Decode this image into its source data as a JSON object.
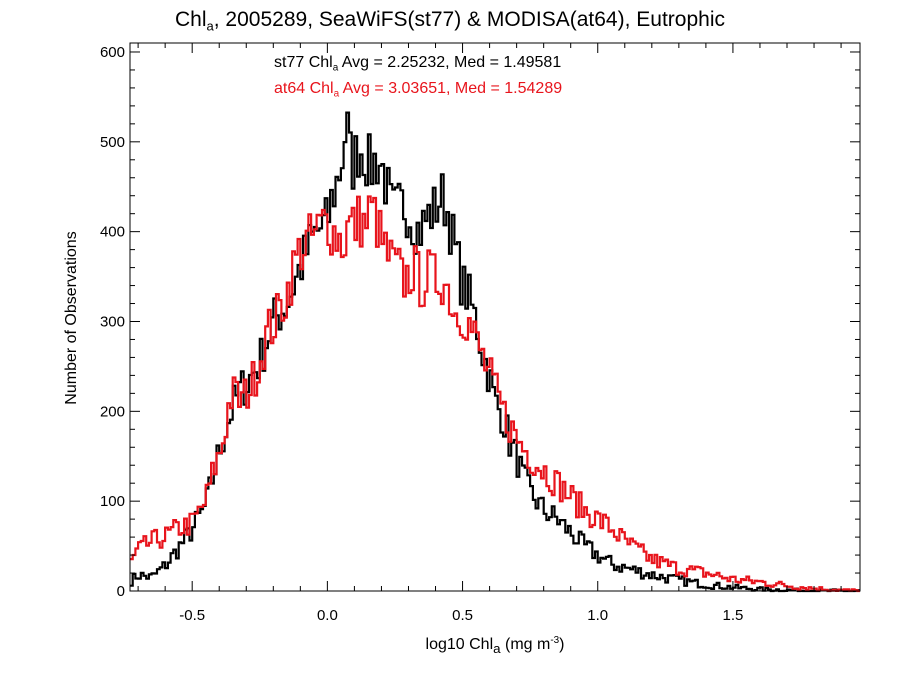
{
  "chart_data": {
    "type": "histogram",
    "title_prefix": "Chl",
    "title_sub": "a",
    "title_suffix": ", 2005289, SeaWiFS(st77) & MODISA(at64), Eutrophic",
    "xlabel_prefix": "log10 Chl",
    "xlabel_sub": "a",
    "xlabel_unit": " (mg m",
    "xlabel_sup": "-3",
    "xlabel_close": ")",
    "ylabel": "Number of Observations",
    "xlim": [
      -0.73,
      1.97
    ],
    "ylim": [
      0,
      610
    ],
    "xticks": [
      {
        "value": -0.5,
        "label": "-0.5"
      },
      {
        "value": 0.0,
        "label": "0.0"
      },
      {
        "value": 0.5,
        "label": "0.5"
      },
      {
        "value": 1.0,
        "label": "1.0"
      },
      {
        "value": 1.5,
        "label": "1.5"
      }
    ],
    "yticks": [
      {
        "value": 0,
        "label": "0"
      },
      {
        "value": 100,
        "label": "100"
      },
      {
        "value": 200,
        "label": "200"
      },
      {
        "value": 300,
        "label": "300"
      },
      {
        "value": 400,
        "label": "400"
      },
      {
        "value": 500,
        "label": "500"
      },
      {
        "value": 600,
        "label": "600"
      }
    ],
    "annotations": [
      {
        "color": "#000000",
        "prefix": "st77 Chl",
        "sub": "a",
        "suffix": " Avg = 2.25232, Med = 1.49581"
      },
      {
        "color": "#e8141c",
        "prefix": "at64 Chl",
        "sub": "a",
        "suffix": " Avg = 3.03651, Med = 1.54289"
      }
    ],
    "grid": false,
    "series": [
      {
        "color": "#000000",
        "points": [
          [
            -0.73,
            10
          ],
          [
            -0.7,
            18
          ],
          [
            -0.65,
            15
          ],
          [
            -0.6,
            28
          ],
          [
            -0.55,
            48
          ],
          [
            -0.5,
            68
          ],
          [
            -0.45,
            95
          ],
          [
            -0.42,
            130
          ],
          [
            -0.4,
            155
          ],
          [
            -0.37,
            185
          ],
          [
            -0.35,
            205
          ],
          [
            -0.32,
            225
          ],
          [
            -0.3,
            230
          ],
          [
            -0.25,
            255
          ],
          [
            -0.2,
            300
          ],
          [
            -0.15,
            320
          ],
          [
            -0.1,
            360
          ],
          [
            -0.05,
            395
          ],
          [
            -0.02,
            405
          ],
          [
            0.0,
            410
          ],
          [
            0.02,
            440
          ],
          [
            0.04,
            460
          ],
          [
            0.06,
            490
          ],
          [
            0.07,
            525
          ],
          [
            0.09,
            470
          ],
          [
            0.1,
            480
          ],
          [
            0.12,
            495
          ],
          [
            0.14,
            485
          ],
          [
            0.16,
            470
          ],
          [
            0.18,
            480
          ],
          [
            0.2,
            475
          ],
          [
            0.22,
            450
          ],
          [
            0.24,
            420
          ],
          [
            0.26,
            425
          ],
          [
            0.28,
            430
          ],
          [
            0.3,
            425
          ],
          [
            0.32,
            410
          ],
          [
            0.34,
            400
          ],
          [
            0.36,
            410
          ],
          [
            0.38,
            420
          ],
          [
            0.4,
            425
          ],
          [
            0.42,
            440
          ],
          [
            0.44,
            430
          ],
          [
            0.46,
            400
          ],
          [
            0.48,
            370
          ],
          [
            0.5,
            340
          ],
          [
            0.52,
            330
          ],
          [
            0.55,
            300
          ],
          [
            0.58,
            260
          ],
          [
            0.6,
            240
          ],
          [
            0.62,
            210
          ],
          [
            0.65,
            195
          ],
          [
            0.68,
            160
          ],
          [
            0.7,
            150
          ],
          [
            0.72,
            130
          ],
          [
            0.75,
            110
          ],
          [
            0.8,
            90
          ],
          [
            0.85,
            80
          ],
          [
            0.9,
            65
          ],
          [
            0.95,
            50
          ],
          [
            1.0,
            40
          ],
          [
            1.05,
            30
          ],
          [
            1.1,
            26
          ],
          [
            1.2,
            18
          ],
          [
            1.3,
            12
          ],
          [
            1.4,
            7
          ],
          [
            1.5,
            4
          ],
          [
            1.6,
            2
          ],
          [
            1.7,
            1
          ],
          [
            1.8,
            0
          ],
          [
            1.97,
            0
          ]
        ]
      },
      {
        "color": "#e8141c",
        "points": [
          [
            -0.73,
            30
          ],
          [
            -0.7,
            45
          ],
          [
            -0.65,
            55
          ],
          [
            -0.6,
            60
          ],
          [
            -0.55,
            70
          ],
          [
            -0.5,
            75
          ],
          [
            -0.45,
            100
          ],
          [
            -0.42,
            135
          ],
          [
            -0.4,
            150
          ],
          [
            -0.38,
            175
          ],
          [
            -0.36,
            215
          ],
          [
            -0.34,
            220
          ],
          [
            -0.32,
            210
          ],
          [
            -0.3,
            220
          ],
          [
            -0.28,
            230
          ],
          [
            -0.25,
            255
          ],
          [
            -0.22,
            290
          ],
          [
            -0.2,
            295
          ],
          [
            -0.15,
            330
          ],
          [
            -0.12,
            365
          ],
          [
            -0.1,
            380
          ],
          [
            -0.05,
            395
          ],
          [
            0.0,
            415
          ],
          [
            0.02,
            400
          ],
          [
            0.04,
            395
          ],
          [
            0.06,
            385
          ],
          [
            0.08,
            410
          ],
          [
            0.1,
            405
          ],
          [
            0.12,
            415
          ],
          [
            0.14,
            405
          ],
          [
            0.16,
            425
          ],
          [
            0.18,
            415
          ],
          [
            0.2,
            390
          ],
          [
            0.22,
            375
          ],
          [
            0.24,
            365
          ],
          [
            0.26,
            360
          ],
          [
            0.28,
            345
          ],
          [
            0.3,
            350
          ],
          [
            0.32,
            360
          ],
          [
            0.35,
            340
          ],
          [
            0.38,
            355
          ],
          [
            0.4,
            345
          ],
          [
            0.42,
            350
          ],
          [
            0.45,
            335
          ],
          [
            0.47,
            310
          ],
          [
            0.5,
            310
          ],
          [
            0.52,
            300
          ],
          [
            0.55,
            280
          ],
          [
            0.58,
            255
          ],
          [
            0.6,
            240
          ],
          [
            0.65,
            200
          ],
          [
            0.7,
            170
          ],
          [
            0.75,
            150
          ],
          [
            0.8,
            135
          ],
          [
            0.85,
            120
          ],
          [
            0.9,
            105
          ],
          [
            0.95,
            90
          ],
          [
            1.0,
            80
          ],
          [
            1.05,
            70
          ],
          [
            1.1,
            55
          ],
          [
            1.15,
            45
          ],
          [
            1.2,
            35
          ],
          [
            1.25,
            30
          ],
          [
            1.3,
            25
          ],
          [
            1.4,
            20
          ],
          [
            1.5,
            13
          ],
          [
            1.6,
            10
          ],
          [
            1.7,
            6
          ],
          [
            1.8,
            3
          ],
          [
            1.9,
            1
          ],
          [
            1.97,
            0
          ]
        ]
      }
    ]
  }
}
